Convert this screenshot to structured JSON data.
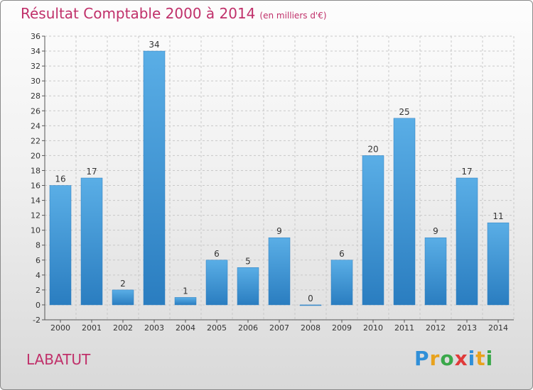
{
  "header": {
    "title": "Résultat Comptable 2000 à 2014",
    "subtitle": "(en milliers d'€)"
  },
  "footer": {
    "place": "LABATUT",
    "logo": {
      "letters": [
        "P",
        "r",
        "o",
        "x",
        "i",
        "t",
        "i"
      ],
      "colors": [
        "#2f8fd8",
        "#e8a21d",
        "#3aa84a",
        "#e03a3a",
        "#2f8fd8",
        "#e8a21d",
        "#3aa84a"
      ]
    }
  },
  "colors": {
    "accent": "#c0306a",
    "bar_top": "#5aaee6",
    "bar_bottom": "#2a7dc0"
  },
  "chart_data": {
    "type": "bar",
    "title": "Résultat Comptable 2000 à 2014",
    "subtitle": "(en milliers d'€)",
    "categories": [
      "2000",
      "2001",
      "2002",
      "2003",
      "2004",
      "2005",
      "2006",
      "2007",
      "2008",
      "2009",
      "2010",
      "2011",
      "2012",
      "2013",
      "2014"
    ],
    "values": [
      16,
      17,
      2,
      34,
      1,
      6,
      5,
      9,
      0,
      6,
      20,
      25,
      9,
      17,
      11
    ],
    "ylim": [
      -2,
      36
    ],
    "yticks": [
      -2,
      0,
      2,
      4,
      6,
      8,
      10,
      12,
      14,
      16,
      18,
      20,
      22,
      24,
      26,
      28,
      30,
      32,
      34,
      36
    ],
    "grid": true,
    "legend": "none"
  }
}
